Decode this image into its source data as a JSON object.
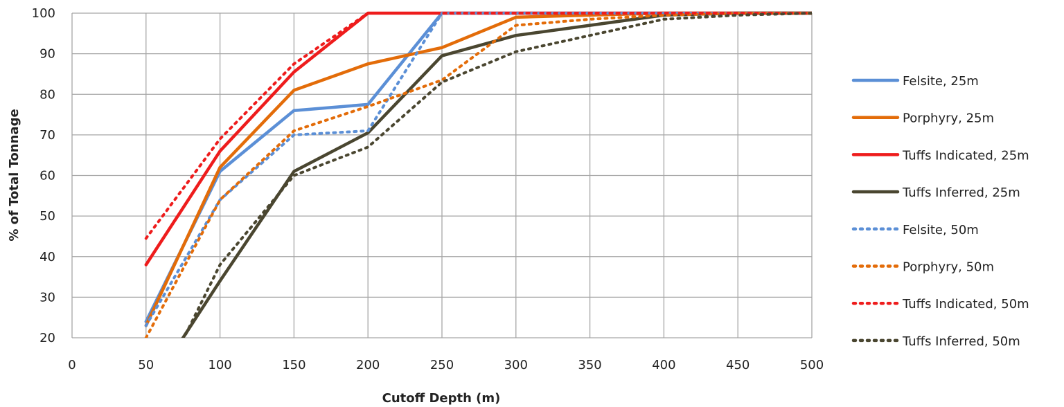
{
  "chart_data": {
    "type": "line",
    "xlabel": "Cutoff Depth (m)",
    "ylabel": "% of Total Tonnage",
    "xlim": [
      0,
      500
    ],
    "ylim": [
      20,
      100
    ],
    "xticks": [
      0,
      50,
      100,
      150,
      200,
      250,
      300,
      350,
      400,
      450,
      500
    ],
    "yticks": [
      20,
      30,
      40,
      50,
      60,
      70,
      80,
      90,
      100
    ],
    "grid": true,
    "legend_position": "right",
    "x": [
      50,
      100,
      150,
      200,
      250,
      300,
      350,
      400,
      450,
      500
    ],
    "series": [
      {
        "name": "Felsite, 25m",
        "color": "#5b8fd6",
        "style": "solid",
        "values": [
          24,
          61,
          76,
          77.5,
          100,
          100,
          100,
          100,
          100,
          100
        ]
      },
      {
        "name": "Porphyry, 25m",
        "color": "#e36c09",
        "style": "solid",
        "values": [
          23,
          62,
          81,
          87.5,
          91.5,
          99,
          99.5,
          100,
          100,
          100
        ]
      },
      {
        "name": "Tuffs Indicated, 25m",
        "color": "#ee1c1c",
        "style": "solid",
        "values": [
          38,
          66,
          85.5,
          100,
          100,
          100,
          100,
          100,
          100,
          100
        ]
      },
      {
        "name": "Tuffs Inferred, 25m",
        "color": "#4a4630",
        "style": "solid",
        "values": [
          6,
          34,
          61,
          70.5,
          89.5,
          94.5,
          97,
          99.5,
          100,
          100
        ]
      },
      {
        "name": "Felsite, 50m",
        "color": "#5b8fd6",
        "style": "dotted",
        "values": [
          23,
          54,
          70,
          71,
          100,
          100,
          100,
          100,
          100,
          100
        ]
      },
      {
        "name": "Porphyry, 50m",
        "color": "#e36c09",
        "style": "dotted",
        "values": [
          20,
          54,
          71,
          77,
          83.5,
          97,
          98.5,
          99.5,
          100,
          100
        ]
      },
      {
        "name": "Tuffs Indicated, 50m",
        "color": "#ee1c1c",
        "style": "dotted",
        "values": [
          44.5,
          69,
          87.5,
          100,
          100,
          100,
          100,
          100,
          100,
          100
        ]
      },
      {
        "name": "Tuffs Inferred, 50m",
        "color": "#4a4630",
        "style": "dotted",
        "values": [
          1,
          38,
          60,
          67,
          83,
          90.5,
          94.5,
          98.5,
          99.5,
          100
        ]
      }
    ]
  }
}
